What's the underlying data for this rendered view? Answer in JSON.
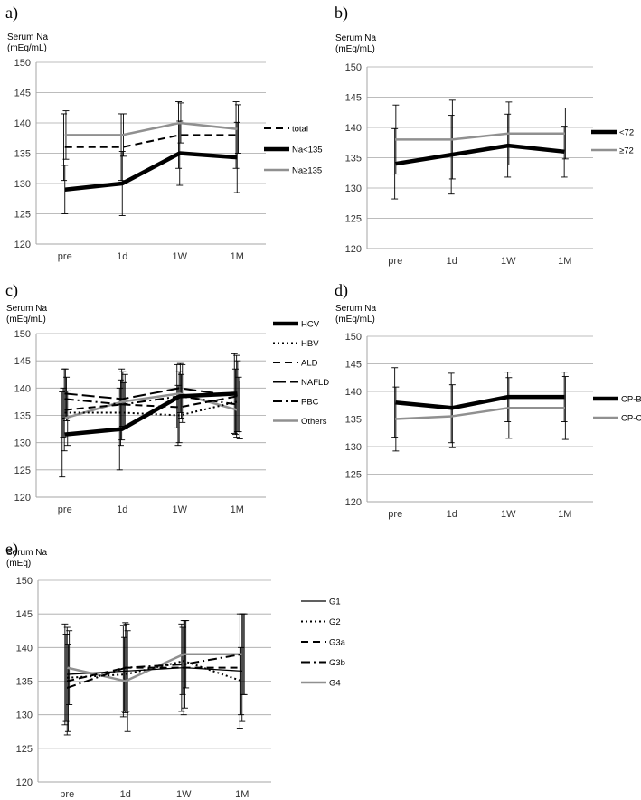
{
  "chart_data": [
    {
      "panel": "a)",
      "type": "line",
      "ylabel": [
        "Serum Na",
        "(mEq/mL)"
      ],
      "ylim": [
        120,
        150
      ],
      "yticks": [
        "120",
        "125",
        "130",
        "135",
        "140",
        "145",
        "150"
      ],
      "categories": [
        "pre",
        "1d",
        "1W",
        "1M"
      ],
      "legend_position": "right",
      "series": [
        {
          "name": "total",
          "style": "dashed",
          "color": "#000000",
          "values": [
            136,
            136,
            138,
            138
          ],
          "error": [
            5.5,
            5.5,
            5.5,
            5.5
          ]
        },
        {
          "name": "Na<135",
          "style": "thick",
          "color": "#000000",
          "values": [
            129,
            130,
            135,
            134.3
          ],
          "error": [
            4,
            5.3,
            5.3,
            5.8
          ]
        },
        {
          "name": "Na≥135",
          "style": "solid-gray",
          "color": "#909090",
          "values": [
            138,
            138,
            140,
            139
          ],
          "error": [
            4,
            3.5,
            3.3,
            4
          ]
        }
      ]
    },
    {
      "panel": "b)",
      "type": "line",
      "ylabel": [
        "Serum Na",
        "(mEq/mL)"
      ],
      "ylim": [
        120,
        150
      ],
      "yticks": [
        "120",
        "125",
        "130",
        "135",
        "140",
        "145",
        "150"
      ],
      "categories": [
        "pre",
        "1d",
        "1W",
        "1M"
      ],
      "legend_position": "right",
      "series": [
        {
          "name": "<72",
          "style": "thick",
          "color": "#000000",
          "values": [
            134,
            135.5,
            137,
            136
          ],
          "error": [
            5.8,
            6.5,
            5.2,
            4.2
          ]
        },
        {
          "name": "≥72",
          "style": "solid-gray",
          "color": "#909090",
          "values": [
            138,
            138,
            139,
            139
          ],
          "error": [
            5.7,
            6.5,
            5.2,
            4.2
          ]
        }
      ]
    },
    {
      "panel": "c)",
      "type": "line",
      "ylabel": [
        "Serum Na",
        "(mEq/mL)"
      ],
      "ylim": [
        120,
        150
      ],
      "yticks": [
        "120",
        "125",
        "130",
        "135",
        "140",
        "145",
        "150"
      ],
      "categories": [
        "pre",
        "1d",
        "1W",
        "1M"
      ],
      "legend_position": "right",
      "series": [
        {
          "name": "HCV",
          "style": "thick",
          "color": "#000000",
          "values": [
            131.5,
            132.5,
            138.5,
            139
          ],
          "error": [
            7.8,
            7.5,
            5.8,
            7.3
          ]
        },
        {
          "name": "HBV",
          "style": "dotted",
          "color": "#000000",
          "values": [
            135.5,
            135.5,
            135,
            137.5
          ],
          "error": [
            4.5,
            6,
            5.5,
            6
          ]
        },
        {
          "name": "ALD",
          "style": "dashed",
          "color": "#000000",
          "values": [
            136,
            137,
            136.5,
            138.5
          ],
          "error": [
            7.5,
            6.5,
            6.5,
            7.5
          ]
        },
        {
          "name": "NAFLD",
          "style": "longdash",
          "color": "#000000",
          "values": [
            139,
            138,
            140,
            138.5
          ],
          "error": [
            4.5,
            5,
            4.5,
            6.5
          ]
        },
        {
          "name": "PBC",
          "style": "dashdot",
          "color": "#000000",
          "values": [
            138,
            137,
            138.5,
            137
          ],
          "error": [
            4,
            4,
            4,
            5
          ]
        },
        {
          "name": "Others",
          "style": "solid-gray",
          "color": "#909090",
          "values": [
            134.5,
            137.5,
            139,
            136
          ],
          "error": [
            5,
            5,
            5.3,
            5.3
          ]
        }
      ]
    },
    {
      "panel": "d)",
      "type": "line",
      "ylabel": [
        "Serum Na",
        "(mEq/mL)"
      ],
      "ylim": [
        120,
        150
      ],
      "yticks": [
        "120",
        "125",
        "130",
        "135",
        "140",
        "145",
        "150"
      ],
      "categories": [
        "pre",
        "1d",
        "1W",
        "1M"
      ],
      "legend_position": "right",
      "series": [
        {
          "name": "CP-B",
          "style": "thick",
          "color": "#000000",
          "values": [
            138,
            137,
            139,
            139
          ],
          "error": [
            6.3,
            6.3,
            4.5,
            4.5
          ]
        },
        {
          "name": "CP-C",
          "style": "solid-gray",
          "color": "#909090",
          "values": [
            135,
            135.5,
            137,
            137
          ],
          "error": [
            5.8,
            5.7,
            5.5,
            5.7
          ]
        }
      ]
    },
    {
      "panel": "e)",
      "type": "line",
      "ylabel": [
        "Serum Na",
        "(mEq)"
      ],
      "ylim": [
        120,
        150
      ],
      "yticks": [
        "120",
        "125",
        "130",
        "135",
        "140",
        "145",
        "150"
      ],
      "categories": [
        "pre",
        "1d",
        "1W",
        "1M"
      ],
      "legend_position": "right",
      "series": [
        {
          "name": "G1",
          "style": "thin",
          "color": "#000000",
          "values": [
            136,
            136.5,
            137,
            136.5
          ],
          "error": [
            7.5,
            6.8,
            6.5,
            8.5
          ]
        },
        {
          "name": "G2",
          "style": "dotted",
          "color": "#000000",
          "values": [
            135.5,
            136,
            138,
            135
          ],
          "error": [
            6.5,
            5.5,
            5,
            5
          ]
        },
        {
          "name": "G3a",
          "style": "dashed",
          "color": "#000000",
          "values": [
            135,
            137,
            137,
            137
          ],
          "error": [
            8,
            6.7,
            7,
            8
          ]
        },
        {
          "name": "G3b",
          "style": "dashdot",
          "color": "#000000",
          "values": [
            134,
            137,
            137.5,
            139
          ],
          "error": [
            6.5,
            6.5,
            6.5,
            6
          ]
        },
        {
          "name": "G4",
          "style": "solid-gray",
          "color": "#909090",
          "values": [
            137,
            135,
            139,
            139
          ],
          "error": [
            5.5,
            7.5,
            5,
            6
          ]
        }
      ]
    }
  ]
}
